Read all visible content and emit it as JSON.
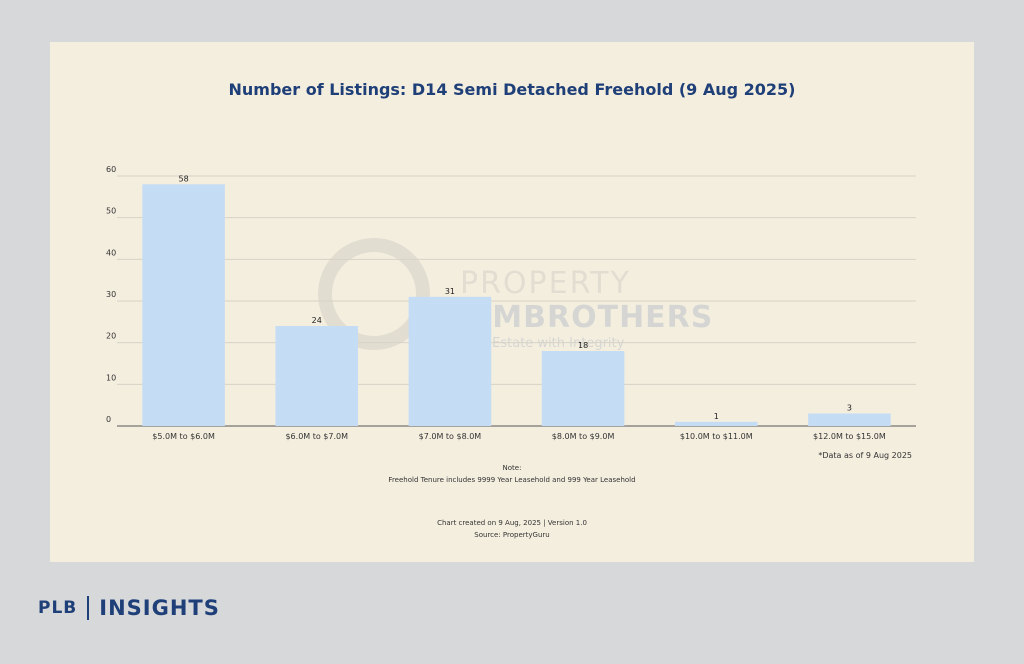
{
  "chart_data": {
    "type": "bar",
    "title": "Number of Listings: D14 Semi Detached Freehold (9 Aug 2025)",
    "categories": [
      "$5.0M to $6.0M",
      "$6.0M to $7.0M",
      "$7.0M to $8.0M",
      "$8.0M to $9.0M",
      "$10.0M to $11.0M",
      "$12.0M to $15.0M"
    ],
    "values": [
      58,
      24,
      31,
      18,
      1,
      3
    ],
    "ylim": [
      0,
      60
    ],
    "yticks": [
      0,
      10,
      20,
      30,
      40,
      50,
      60
    ],
    "grid": true,
    "bar_color": "#c5dcf5"
  },
  "annotations": {
    "as_of": "*Data as of 9 Aug 2025",
    "note_title": "Note:",
    "note_text": "Freehold Tenure includes 9999 Year Leasehold and 999 Year Leasehold",
    "created": "Chart created on 9 Aug, 2025 | Version 1.0",
    "source": "Source: PropertyGuru"
  },
  "watermark": {
    "line1": "PROPERTY",
    "line2": "LIMBROTHERS",
    "line3": "Real Estate with Integrity"
  },
  "brand": {
    "plb": "PLB",
    "insights": "INSIGHTS"
  },
  "colors": {
    "title": "#1f3f78",
    "card_bg": "#f4eedf",
    "page_bg": "#d6d8da"
  }
}
